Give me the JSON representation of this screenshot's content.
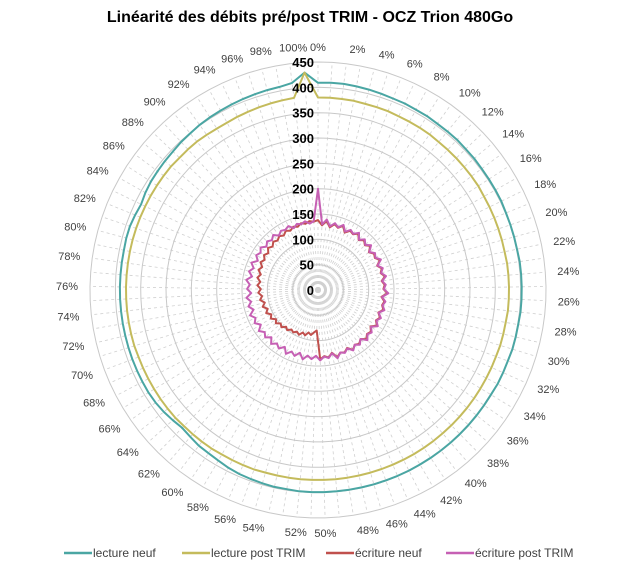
{
  "chart_data": {
    "type": "radar",
    "title": "Linéarité des débits pré/post TRIM - OCZ Trion 480Go",
    "category_labels": [
      "0%",
      "2%",
      "4%",
      "6%",
      "8%",
      "10%",
      "12%",
      "14%",
      "16%",
      "18%",
      "20%",
      "22%",
      "24%",
      "26%",
      "28%",
      "30%",
      "32%",
      "34%",
      "36%",
      "38%",
      "40%",
      "42%",
      "44%",
      "46%",
      "48%",
      "50%",
      "52%",
      "54%",
      "56%",
      "58%",
      "60%",
      "62%",
      "64%",
      "66%",
      "68%",
      "70%",
      "72%",
      "74%",
      "76%",
      "78%",
      "80%",
      "82%",
      "84%",
      "86%",
      "88%",
      "90%",
      "92%",
      "94%",
      "96%",
      "98%",
      "100%"
    ],
    "x_percent_step": 1,
    "radial_ticks": [
      "0",
      "50",
      "100",
      "150",
      "200",
      "250",
      "300",
      "350",
      "400",
      "450"
    ],
    "rlim": [
      0,
      450
    ],
    "grid": true,
    "legend_position": "bottom",
    "series": [
      {
        "name": "lecture neuf",
        "color": "#4aa6a3",
        "values": [
          409,
          410,
          410,
          409,
          408,
          407,
          406,
          406,
          405,
          405,
          404,
          404,
          404,
          403,
          403,
          402,
          402,
          402,
          402,
          401,
          401,
          401,
          401,
          402,
          402,
          402,
          402,
          402,
          401,
          401,
          401,
          400,
          400,
          400,
          399,
          399,
          399,
          399,
          399,
          399,
          399,
          399,
          399,
          399,
          399,
          399,
          399,
          399,
          399,
          399,
          399,
          399,
          399,
          398,
          398,
          397,
          396,
          395,
          393,
          390,
          388,
          387,
          384,
          382,
          385,
          388,
          390,
          391,
          391,
          391,
          391,
          391,
          391,
          391,
          391,
          391,
          391,
          391,
          391,
          391,
          392,
          392,
          390,
          388,
          391,
          393,
          394,
          395,
          396,
          398,
          399,
          401,
          402,
          403,
          404,
          405,
          406,
          407,
          408,
          412,
          430
        ]
      },
      {
        "name": "lecture post TRIM",
        "color": "#c4bb5c",
        "values": [
          380,
          380,
          380,
          380,
          379,
          379,
          379,
          378,
          378,
          378,
          378,
          377,
          377,
          377,
          377,
          377,
          377,
          376,
          376,
          376,
          376,
          376,
          376,
          377,
          377,
          377,
          377,
          377,
          376,
          376,
          376,
          375,
          375,
          375,
          375,
          375,
          375,
          375,
          375,
          375,
          375,
          375,
          375,
          375,
          375,
          375,
          375,
          375,
          375,
          375,
          375,
          375,
          375,
          375,
          375,
          375,
          376,
          376,
          376,
          376,
          377,
          377,
          377,
          377,
          378,
          378,
          378,
          378,
          378,
          378,
          378,
          379,
          379,
          379,
          379,
          379,
          379,
          379,
          379,
          379,
          379,
          379,
          379,
          379,
          379,
          379,
          379,
          379,
          378,
          378,
          378,
          377,
          376,
          376,
          377,
          378,
          379,
          380,
          381,
          382,
          430
        ]
      },
      {
        "name": "écriture neuf",
        "color": "#c0504d",
        "values": [
          138,
          128,
          137,
          126,
          134,
          129,
          136,
          125,
          133,
          130,
          137,
          127,
          134,
          128,
          135,
          125,
          132,
          129,
          136,
          126,
          133,
          128,
          135,
          127,
          132,
          129,
          137,
          126,
          133,
          130,
          135,
          127,
          134,
          129,
          136,
          126,
          133,
          130,
          136,
          128,
          134,
          130,
          137,
          128,
          134,
          131,
          138,
          127,
          135,
          131,
          137,
          80,
          84,
          90,
          86,
          93,
          89,
          96,
          92,
          97,
          94,
          100,
          96,
          103,
          99,
          106,
          101,
          109,
          104,
          112,
          106,
          114,
          108,
          116,
          111,
          118,
          113,
          120,
          115,
          122,
          117,
          124,
          119,
          126,
          121,
          127,
          122,
          129,
          124,
          130,
          126,
          131,
          127,
          133,
          129,
          134,
          131,
          136,
          133,
          137,
          135
        ]
      },
      {
        "name": "écriture post TRIM",
        "color": "#c660b4",
        "values": [
          200,
          130,
          140,
          128,
          136,
          130,
          138,
          127,
          135,
          131,
          139,
          128,
          136,
          129,
          137,
          126,
          134,
          130,
          138,
          127,
          135,
          129,
          137,
          128,
          134,
          130,
          139,
          127,
          135,
          131,
          137,
          128,
          136,
          130,
          138,
          127,
          135,
          131,
          139,
          128,
          136,
          130,
          138,
          129,
          135,
          131,
          140,
          128,
          136,
          132,
          139,
          130,
          137,
          131,
          140,
          129,
          138,
          132,
          141,
          130,
          139,
          133,
          141,
          131,
          140,
          134,
          142,
          132,
          141,
          135,
          143,
          133,
          141,
          134,
          142,
          132,
          140,
          135,
          143,
          133,
          141,
          134,
          142,
          132,
          140,
          135,
          141,
          133,
          139,
          134,
          140,
          132,
          138,
          135,
          139,
          131,
          137,
          134,
          138,
          132,
          136
        ]
      }
    ]
  }
}
